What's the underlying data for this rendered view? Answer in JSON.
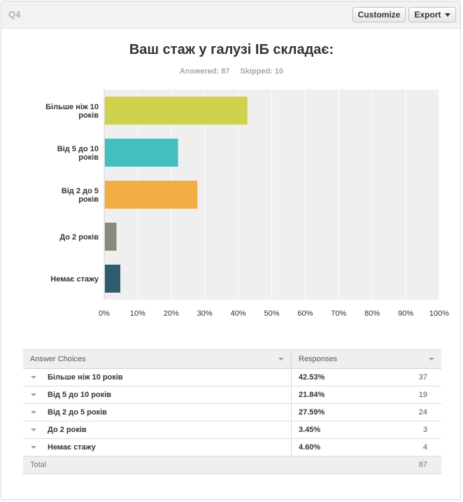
{
  "header": {
    "question": "Q4",
    "customize_label": "Customize",
    "export_label": "Export"
  },
  "title": "Ваш стаж у галузі ІБ складає:",
  "answered_label": "Answered: 87",
  "skipped_label": "Skipped: 10",
  "chart_data": {
    "type": "bar",
    "orientation": "horizontal",
    "categories": [
      [
        "Більше ніж 10",
        "років"
      ],
      [
        "Від 5 до 10",
        "років"
      ],
      [
        "Від 2 до 5",
        "років"
      ],
      [
        "До 2 років"
      ],
      [
        "Немає стажу"
      ]
    ],
    "values": [
      42.53,
      21.84,
      27.59,
      3.45,
      4.6
    ],
    "colors": [
      "#cfd14b",
      "#44bfbf",
      "#f3ad45",
      "#8a8a7c",
      "#2e5d6e"
    ],
    "xlim": [
      0,
      100
    ],
    "ticks": [
      "0%",
      "10%",
      "20%",
      "30%",
      "40%",
      "50%",
      "60%",
      "70%",
      "80%",
      "90%",
      "100%"
    ],
    "grid": true,
    "title": "Ваш стаж у галузі ІБ складає:"
  },
  "table": {
    "col_choices": "Answer Choices",
    "col_responses": "Responses",
    "rows": [
      {
        "label": "Більше ніж 10 років",
        "pct": "42.53%",
        "count": "37"
      },
      {
        "label": "Від 5 до 10 років",
        "pct": "21.84%",
        "count": "19"
      },
      {
        "label": "Від 2 до 5 років",
        "pct": "27.59%",
        "count": "24"
      },
      {
        "label": "До 2 років",
        "pct": "3.45%",
        "count": "3"
      },
      {
        "label": "Немає стажу",
        "pct": "4.60%",
        "count": "4"
      }
    ],
    "total_label": "Total",
    "total_count": "87"
  }
}
